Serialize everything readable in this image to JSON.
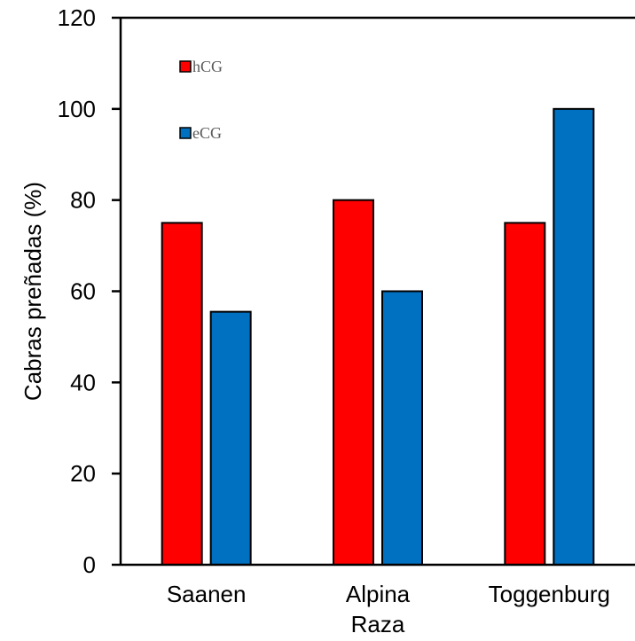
{
  "chart_data": {
    "type": "bar",
    "categories": [
      "Saanen",
      "Alpina",
      "Toggenburg"
    ],
    "series": [
      {
        "name": "hCG",
        "values": [
          75,
          80,
          75
        ],
        "color": "#FF0000"
      },
      {
        "name": "eCG",
        "values": [
          55.5,
          60,
          100
        ],
        "color": "#0070C0"
      }
    ],
    "xlabel": "Raza",
    "ylabel": "Cabras preñadas (%)",
    "ylim": [
      0,
      120
    ],
    "yticks": [
      "0",
      "20",
      "40",
      "60",
      "80",
      "100",
      "120"
    ],
    "grid": false,
    "legend_position": "top-left"
  }
}
